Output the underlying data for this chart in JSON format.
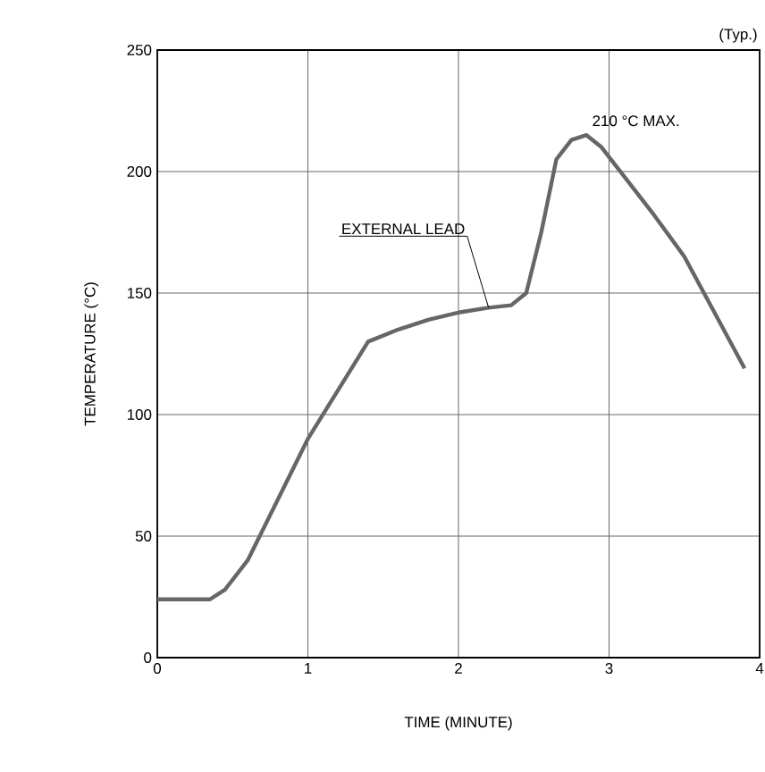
{
  "chart_data": {
    "type": "line",
    "xlabel": "TIME (MINUTE)",
    "ylabel": "TEMPERATURE (°C)",
    "x": [
      0,
      0.2,
      0.35,
      0.45,
      0.6,
      0.8,
      1.0,
      1.2,
      1.4,
      1.6,
      1.8,
      2.0,
      2.2,
      2.35,
      2.45,
      2.55,
      2.65,
      2.75,
      2.85,
      2.95,
      3.1,
      3.3,
      3.5,
      3.7,
      3.9
    ],
    "series": [
      {
        "color": "#666666",
        "values": [
          24,
          24,
          24,
          28,
          40,
          65,
          90,
          110,
          130,
          135,
          139,
          142,
          144,
          145,
          150,
          175,
          205,
          213,
          215,
          210,
          198,
          182,
          165,
          142,
          119
        ]
      }
    ],
    "xlim": [
      0,
      4
    ],
    "xticks": [
      0,
      1,
      2,
      3,
      4
    ],
    "ylim": [
      0,
      250
    ],
    "yticks": [
      0,
      50,
      100,
      150,
      200,
      250
    ],
    "grid": true,
    "marker": "none",
    "line_style": "solid",
    "annotations": [
      {
        "text": "EXTERNAL LEAD",
        "x": 2.2,
        "y": 144
      },
      {
        "text": "210 °C MAX.",
        "x": 2.85,
        "y": 215
      },
      "(Typ.)"
    ]
  }
}
